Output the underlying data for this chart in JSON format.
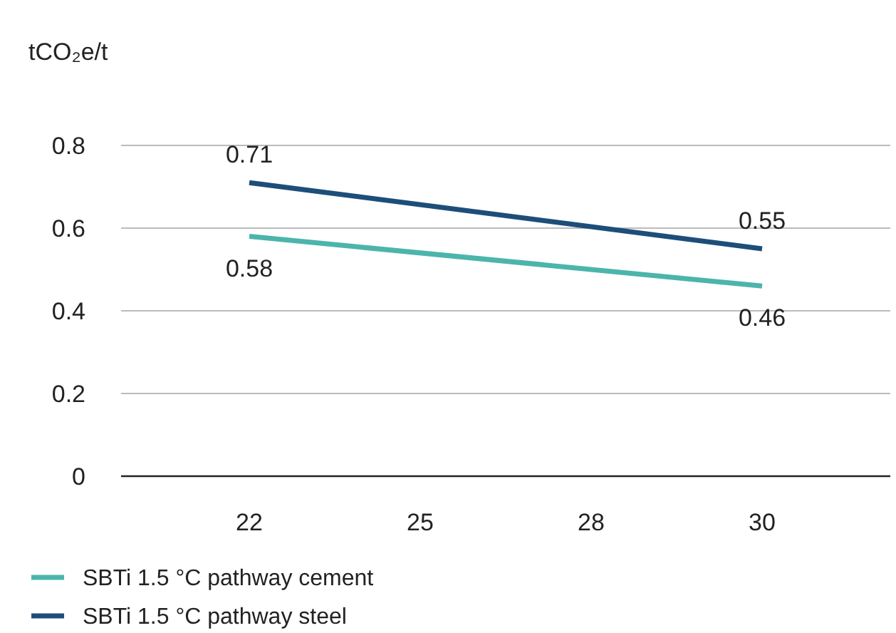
{
  "chart_data": {
    "type": "line",
    "ylabel": "tCO₂e/t",
    "categories": [
      "22",
      "25",
      "28",
      "30"
    ],
    "series": [
      {
        "name": "SBTi 1.5 °C pathway cement",
        "color": "#4cb5ab",
        "values": [
          0.58,
          null,
          null,
          0.46
        ]
      },
      {
        "name": "SBTi 1.5 °C pathway steel",
        "color": "#1d4e7a",
        "values": [
          0.71,
          null,
          null,
          0.55
        ]
      }
    ],
    "ylim": [
      0,
      0.8
    ],
    "yticks": [
      0,
      0.2,
      0.4,
      0.6,
      0.8
    ],
    "grid": "y",
    "legend": "bottom left",
    "data_labels": true,
    "marker": "none",
    "line_style": "solid"
  }
}
